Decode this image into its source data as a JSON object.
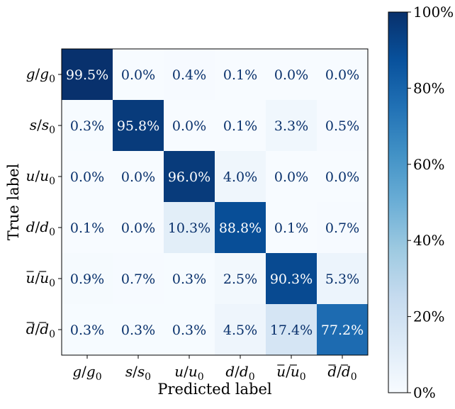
{
  "chart_data": {
    "type": "heatmap",
    "xlabel": "Predicted label",
    "ylabel": "True label",
    "row_labels": [
      {
        "base": "g",
        "sub": "0",
        "bar": false
      },
      {
        "base": "s",
        "sub": "0",
        "bar": false
      },
      {
        "base": "u",
        "sub": "0",
        "bar": false
      },
      {
        "base": "d",
        "sub": "0",
        "bar": false
      },
      {
        "base": "u",
        "sub": "0",
        "bar": true
      },
      {
        "base": "d",
        "sub": "0",
        "bar": true
      }
    ],
    "col_labels": [
      {
        "base": "g",
        "sub": "0",
        "bar": false
      },
      {
        "base": "s",
        "sub": "0",
        "bar": false
      },
      {
        "base": "u",
        "sub": "0",
        "bar": false
      },
      {
        "base": "d",
        "sub": "0",
        "bar": false
      },
      {
        "base": "u",
        "sub": "0",
        "bar": true
      },
      {
        "base": "d",
        "sub": "0",
        "bar": true
      }
    ],
    "values": [
      [
        99.5,
        0.0,
        0.4,
        0.1,
        0.0,
        0.0
      ],
      [
        0.3,
        95.8,
        0.0,
        0.1,
        3.3,
        0.5
      ],
      [
        0.0,
        0.0,
        96.0,
        4.0,
        0.0,
        0.0
      ],
      [
        0.1,
        0.0,
        10.3,
        88.8,
        0.1,
        0.7
      ],
      [
        0.9,
        0.7,
        0.3,
        2.5,
        90.3,
        5.3
      ],
      [
        0.3,
        0.3,
        0.3,
        4.5,
        17.4,
        77.2
      ]
    ],
    "value_suffix": "%",
    "colorbar": {
      "range": [
        0,
        100
      ],
      "ticks": [
        "0%",
        "20%",
        "40%",
        "60%",
        "80%",
        "100%"
      ],
      "colormap": [
        "#f7fbff",
        "#deebf7",
        "#c6dbef",
        "#9ecae1",
        "#6baed6",
        "#4292c6",
        "#2171b5",
        "#08519c",
        "#08306b"
      ]
    },
    "text_colors": {
      "dark_cell": "#ffffff",
      "light_cell": "#08306b"
    },
    "grid": false
  }
}
